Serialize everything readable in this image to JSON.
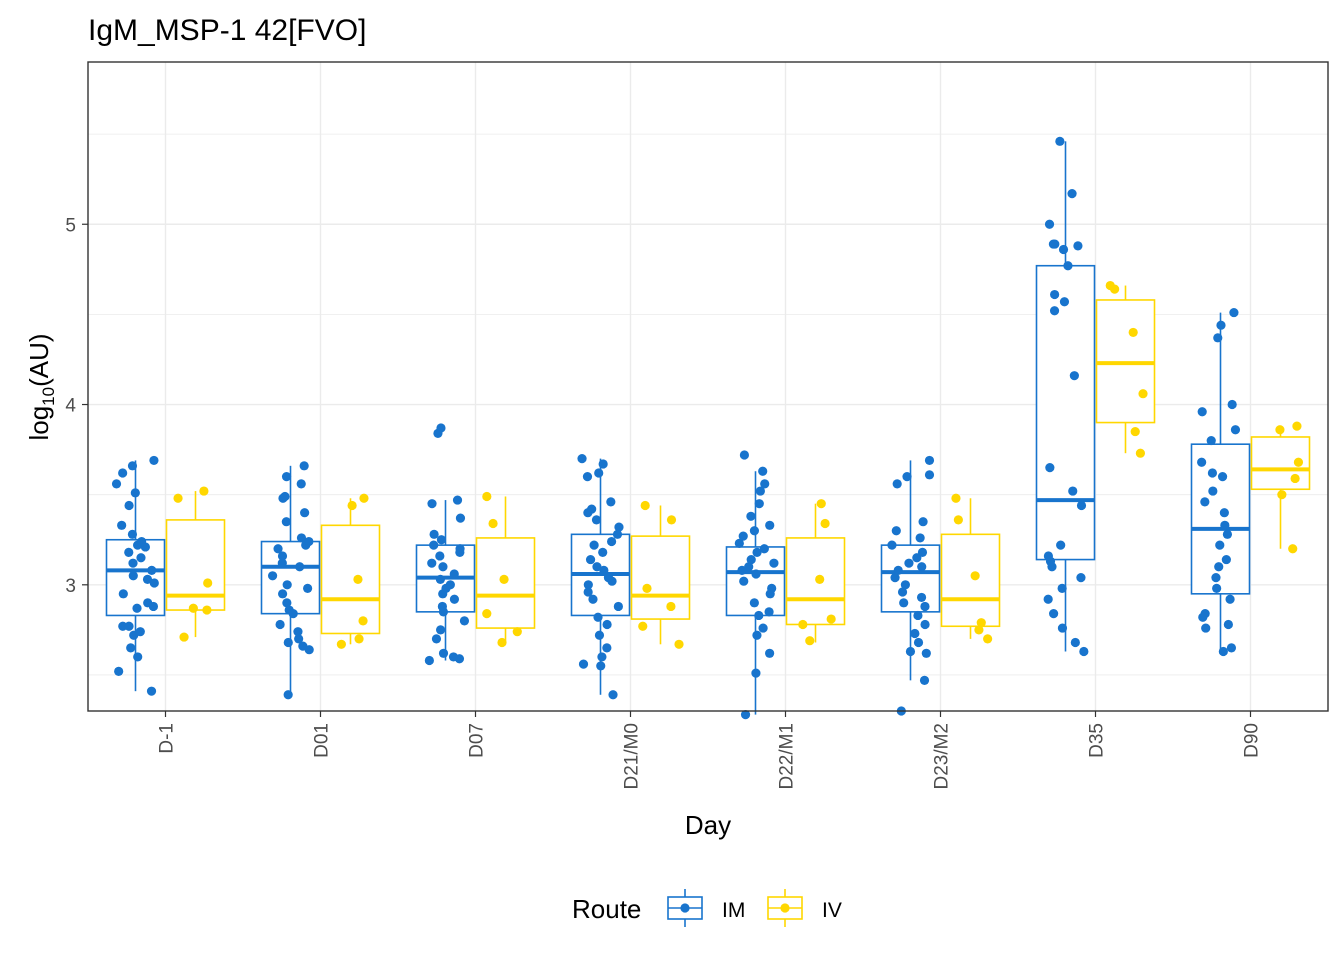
{
  "chart_data": {
    "type": "boxplot",
    "title": "IgM_MSP-1 42[FVO]",
    "xlabel": "Day",
    "ylabel_base": "log",
    "ylabel_sub": "10",
    "ylabel_rest": "(AU)",
    "ylim": [
      2.3,
      5.9
    ],
    "yticks": [
      3,
      4,
      5
    ],
    "grid": true,
    "legend_position": "bottom",
    "legend_title": "Route",
    "categories": [
      "D-1",
      "D01",
      "D07",
      "D21/M0",
      "D22/M1",
      "D23/M2",
      "D35",
      "D90"
    ],
    "series": [
      {
        "name": "IM",
        "color": "#1874cd",
        "boxes": [
          {
            "lower": 2.41,
            "q1": 2.83,
            "median": 3.08,
            "q3": 3.25,
            "upper": 3.69
          },
          {
            "lower": 2.39,
            "q1": 2.84,
            "median": 3.1,
            "q3": 3.24,
            "upper": 3.66
          },
          {
            "lower": 2.58,
            "q1": 2.85,
            "median": 3.04,
            "q3": 3.22,
            "upper": 3.47
          },
          {
            "lower": 2.39,
            "q1": 2.83,
            "median": 3.06,
            "q3": 3.28,
            "upper": 3.7
          },
          {
            "lower": 2.28,
            "q1": 2.83,
            "median": 3.07,
            "q3": 3.21,
            "upper": 3.63
          },
          {
            "lower": 2.47,
            "q1": 2.85,
            "median": 3.07,
            "q3": 3.22,
            "upper": 3.69
          },
          {
            "lower": 2.63,
            "q1": 3.14,
            "median": 3.47,
            "q3": 4.77,
            "upper": 5.46
          },
          {
            "lower": 2.63,
            "q1": 2.95,
            "median": 3.31,
            "q3": 3.78,
            "upper": 4.51
          }
        ],
        "points": [
          [
            2.41,
            2.52,
            2.6,
            2.65,
            2.72,
            2.74,
            2.77,
            2.77,
            2.87,
            2.88,
            2.9,
            2.95,
            3.01,
            3.03,
            3.05,
            3.08,
            3.12,
            3.15,
            3.18,
            3.21,
            3.22,
            3.24,
            3.28,
            3.33,
            3.44,
            3.51,
            3.56,
            3.62,
            3.66,
            3.69
          ],
          [
            2.39,
            2.64,
            2.66,
            2.68,
            2.7,
            2.74,
            2.78,
            2.84,
            2.86,
            2.9,
            2.95,
            2.98,
            3.0,
            3.05,
            3.1,
            3.12,
            3.16,
            3.2,
            3.22,
            3.24,
            3.26,
            3.35,
            3.4,
            3.48,
            3.49,
            3.56,
            3.6,
            3.66
          ],
          [
            2.58,
            2.59,
            2.6,
            2.62,
            2.7,
            2.75,
            2.8,
            2.85,
            2.88,
            2.92,
            2.95,
            2.98,
            3.0,
            3.03,
            3.06,
            3.1,
            3.12,
            3.16,
            3.18,
            3.2,
            3.22,
            3.25,
            3.28,
            3.37,
            3.45,
            3.47,
            3.84,
            3.87
          ],
          [
            2.39,
            2.55,
            2.56,
            2.6,
            2.65,
            2.72,
            2.78,
            2.82,
            2.88,
            2.92,
            2.96,
            3.0,
            3.02,
            3.04,
            3.08,
            3.1,
            3.14,
            3.18,
            3.22,
            3.24,
            3.28,
            3.32,
            3.36,
            3.4,
            3.42,
            3.46,
            3.6,
            3.62,
            3.67,
            3.7
          ],
          [
            2.28,
            2.51,
            2.62,
            2.72,
            2.76,
            2.83,
            2.85,
            2.9,
            2.95,
            2.98,
            3.02,
            3.06,
            3.08,
            3.1,
            3.12,
            3.14,
            3.18,
            3.2,
            3.23,
            3.27,
            3.3,
            3.33,
            3.38,
            3.45,
            3.52,
            3.56,
            3.63,
            3.72
          ],
          [
            2.3,
            2.47,
            2.62,
            2.63,
            2.68,
            2.73,
            2.78,
            2.83,
            2.88,
            2.9,
            2.93,
            2.96,
            3.0,
            3.04,
            3.08,
            3.1,
            3.12,
            3.15,
            3.18,
            3.22,
            3.26,
            3.3,
            3.35,
            3.56,
            3.6,
            3.61,
            3.69
          ],
          [
            2.63,
            2.68,
            2.76,
            2.84,
            2.92,
            2.98,
            3.04,
            3.1,
            3.13,
            3.16,
            3.22,
            3.44,
            3.52,
            3.65,
            4.16,
            4.52,
            4.57,
            4.61,
            4.77,
            4.86,
            4.88,
            4.89,
            4.89,
            5.0,
            5.17,
            5.46
          ],
          [
            2.63,
            2.65,
            2.76,
            2.78,
            2.82,
            2.84,
            2.92,
            2.98,
            3.04,
            3.1,
            3.14,
            3.22,
            3.28,
            3.33,
            3.4,
            3.46,
            3.52,
            3.6,
            3.62,
            3.68,
            3.8,
            3.86,
            3.96,
            4.0,
            4.37,
            4.44,
            4.51
          ]
        ]
      },
      {
        "name": "IV",
        "color": "#ffd700",
        "boxes": [
          {
            "lower": 2.71,
            "q1": 2.86,
            "median": 2.94,
            "q3": 3.36,
            "upper": 3.52
          },
          {
            "lower": 2.67,
            "q1": 2.73,
            "median": 2.92,
            "q3": 3.33,
            "upper": 3.48
          },
          {
            "lower": 2.68,
            "q1": 2.76,
            "median": 2.94,
            "q3": 3.26,
            "upper": 3.49
          },
          {
            "lower": 2.67,
            "q1": 2.81,
            "median": 2.94,
            "q3": 3.27,
            "upper": 3.44
          },
          {
            "lower": 2.68,
            "q1": 2.78,
            "median": 2.92,
            "q3": 3.26,
            "upper": 3.45
          },
          {
            "lower": 2.7,
            "q1": 2.77,
            "median": 2.92,
            "q3": 3.28,
            "upper": 3.48
          },
          {
            "lower": 3.73,
            "q1": 3.9,
            "median": 4.23,
            "q3": 4.58,
            "upper": 4.66
          },
          {
            "lower": 3.2,
            "q1": 3.53,
            "median": 3.64,
            "q3": 3.82,
            "upper": 3.88
          }
        ],
        "points": [
          [
            2.71,
            2.86,
            2.87,
            3.01,
            3.48,
            3.52
          ],
          [
            2.67,
            2.7,
            2.8,
            3.03,
            3.44,
            3.48
          ],
          [
            2.68,
            2.74,
            2.84,
            3.03,
            3.34,
            3.49
          ],
          [
            2.67,
            2.77,
            2.88,
            2.98,
            3.36,
            3.44
          ],
          [
            2.69,
            2.78,
            2.81,
            3.03,
            3.34,
            3.45
          ],
          [
            2.7,
            2.75,
            2.79,
            3.05,
            3.36,
            3.48
          ],
          [
            3.73,
            3.85,
            4.06,
            4.4,
            4.64,
            4.66
          ],
          [
            3.2,
            3.5,
            3.59,
            3.68,
            3.86,
            3.88
          ]
        ]
      }
    ]
  }
}
